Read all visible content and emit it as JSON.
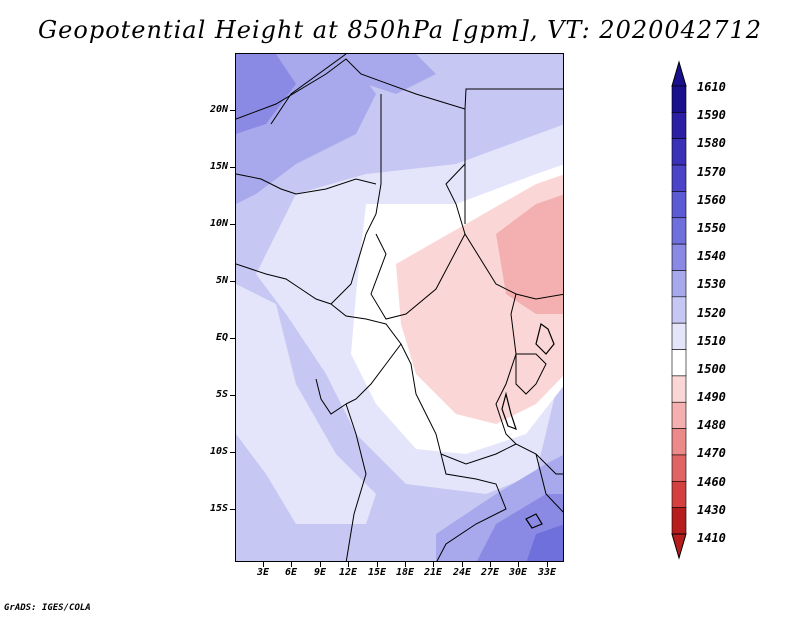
{
  "title": "Geopotential Height at 850hPa [gpm], VT: 2020042712",
  "credit": "GrADS: IGES/COLA",
  "map": {
    "y_labels": [
      "20N",
      "15N",
      "10N",
      "5N",
      "EQ",
      "5S",
      "10S",
      "15S"
    ],
    "x_labels": [
      "3E",
      "6E",
      "9E",
      "12E",
      "15E",
      "18E",
      "21E",
      "24E",
      "27E",
      "30E",
      "33E"
    ]
  },
  "colorbar": {
    "levels": [
      "1610",
      "1590",
      "1580",
      "1570",
      "1560",
      "1550",
      "1540",
      "1530",
      "1520",
      "1510",
      "1500",
      "1490",
      "1480",
      "1470",
      "1460",
      "1430",
      "1410"
    ],
    "colors": [
      "#1a0f8c",
      "#2c1fa6",
      "#3b30b8",
      "#4b44c8",
      "#5c5ad4",
      "#7070dc",
      "#8a8ae4",
      "#a8a8ec",
      "#c7c7f3",
      "#e4e4fa",
      "#ffffff",
      "#fbd6d6",
      "#f4b0b0",
      "#ec8a8a",
      "#e06464",
      "#d43f3f",
      "#b61d1d"
    ],
    "top_arrow_color": "#1a0f8c",
    "bottom_arrow_color": "#b61d1d"
  }
}
